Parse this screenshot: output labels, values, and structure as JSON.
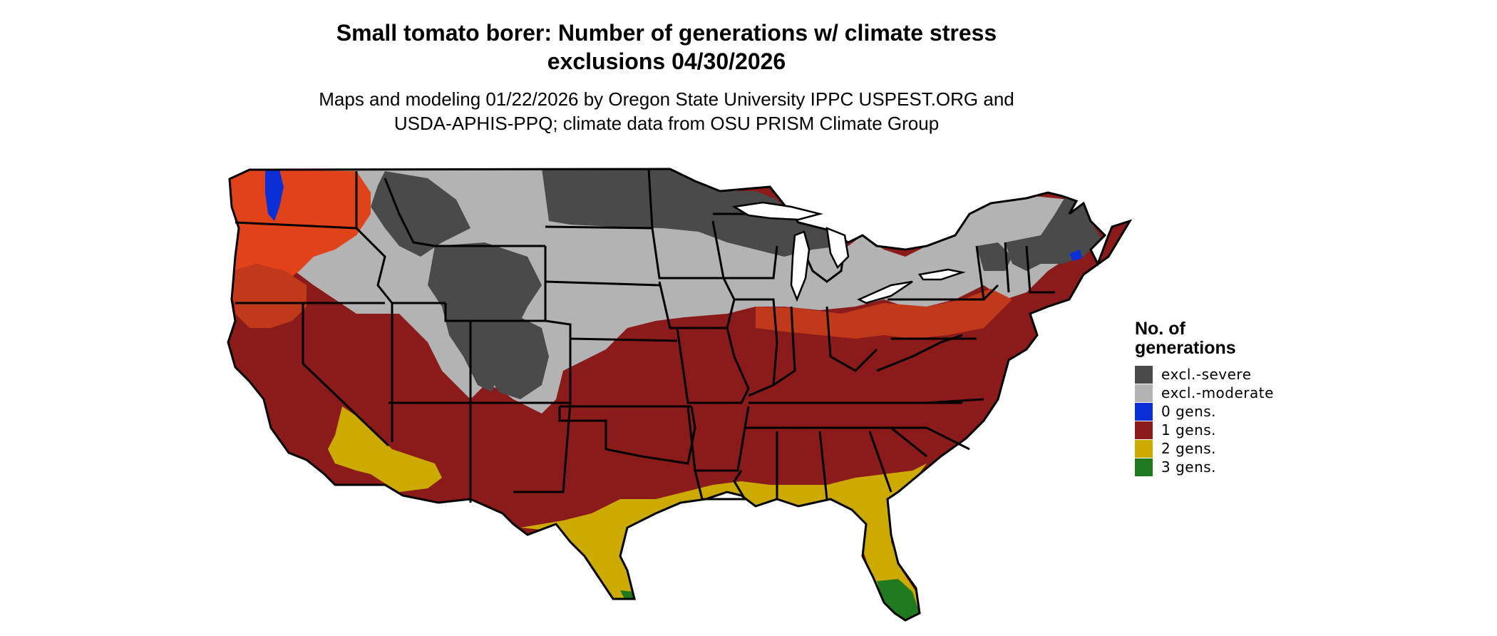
{
  "title": {
    "line1": "Small tomato borer: Number of generations w/ climate stress",
    "line2": "exclusions 04/30/2026"
  },
  "subtitle": {
    "line1": "Maps and modeling 01/22/2026 by Oregon State University IPPC USPEST.ORG and",
    "line2": "USDA-APHIS-PPQ; climate data from OSU PRISM Climate Group"
  },
  "legend": {
    "title_line1": "No. of",
    "title_line2": "generations",
    "items": [
      {
        "label": "excl.-severe",
        "color": "#4a4a4a"
      },
      {
        "label": "excl.-moderate",
        "color": "#b3b3b3"
      },
      {
        "label": "0 gens.",
        "color": "#0a2fd6"
      },
      {
        "label": "1 gens.",
        "color": "#8b1a1a"
      },
      {
        "label": "2 gens.",
        "color": "#ccaa00"
      },
      {
        "label": "3 gens.",
        "color": "#1f7a1f"
      }
    ]
  },
  "colors": {
    "severe": "#4a4a4a",
    "moderate": "#b3b3b3",
    "zero": "#0a2fd6",
    "one": "#8b1a1a",
    "one_light": "#c0391b",
    "one_orange": "#e0421a",
    "two": "#ccaa00",
    "three": "#1f7a1f",
    "border": "#000000"
  }
}
